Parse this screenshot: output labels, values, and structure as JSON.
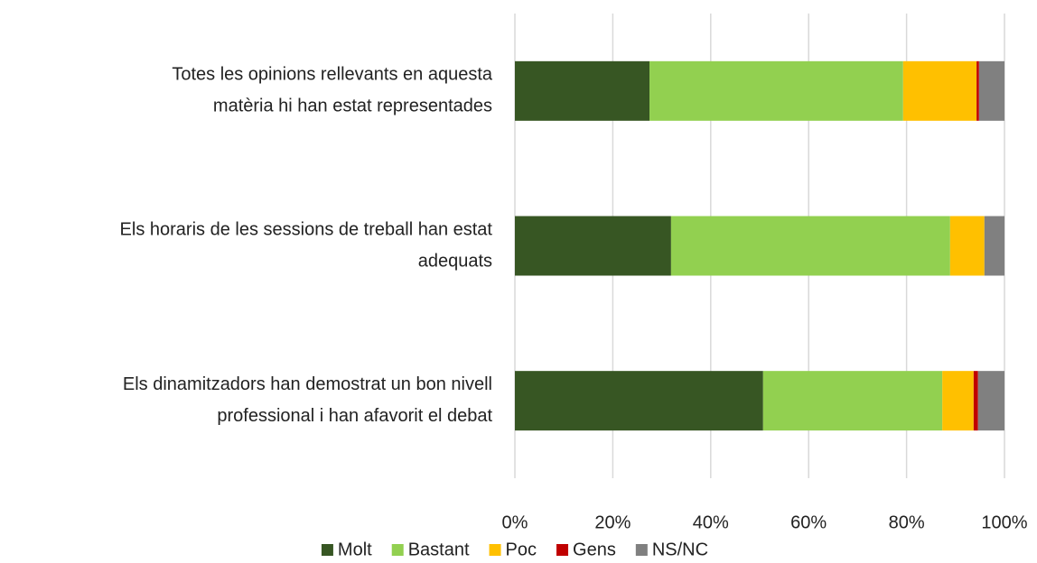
{
  "chart_data": {
    "type": "stacked_barh",
    "categories": [
      [
        "Totes les opinions rellevants en aquesta",
        "matèria hi han estat representades"
      ],
      [
        "Els horaris de les sessions de treball han estat",
        "adequats"
      ],
      [
        "Els dinamitzadors han demostrat un bon nivell",
        "professional i han afavorit el debat"
      ]
    ],
    "series": [
      {
        "name": "Molt",
        "color": "#375623",
        "values": [
          27.5,
          31.9,
          50.7
        ]
      },
      {
        "name": "Bastant",
        "color": "#92d050",
        "values": [
          51.8,
          57,
          36.6
        ]
      },
      {
        "name": "Poc",
        "color": "#ffc000",
        "values": [
          15,
          7,
          6.4
        ]
      },
      {
        "name": "Gens",
        "color": "#c00000",
        "values": [
          0.5,
          0,
          0.9
        ]
      },
      {
        "name": "NS/NC",
        "color": "#808080",
        "values": [
          5.2,
          4.1,
          5.4
        ]
      }
    ],
    "xlim": [
      0,
      100
    ],
    "xticks": [
      {
        "value": 0,
        "label": "0%"
      },
      {
        "value": 20,
        "label": "20%"
      },
      {
        "value": 40,
        "label": "40%"
      },
      {
        "value": 60,
        "label": "60%"
      },
      {
        "value": 80,
        "label": "80%"
      },
      {
        "value": 100,
        "label": "100%"
      }
    ],
    "grid": true,
    "legend": "bottom"
  }
}
